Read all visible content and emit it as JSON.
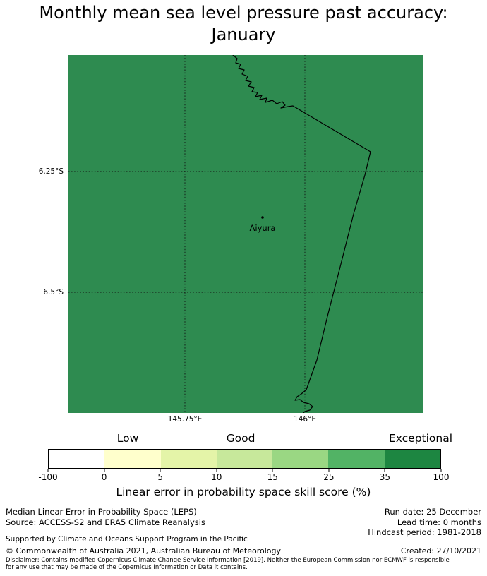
{
  "title": {
    "line1": "Monthly mean sea level pressure past accuracy:",
    "line2": "January"
  },
  "map": {
    "region_fill": "#2e8b50",
    "coastline_color": "#000000",
    "lat_labels": [
      "6.25°S",
      "6.5°S"
    ],
    "lon_labels": [
      "145.75°E",
      "146°E"
    ],
    "station": {
      "name": "Aiyura"
    }
  },
  "colorbar": {
    "quality_labels": [
      "Low",
      "Good",
      "Exceptional"
    ],
    "tick_labels": [
      "-100",
      "0",
      "5",
      "10",
      "15",
      "25",
      "35",
      "100"
    ],
    "segment_colors": [
      "#ffffff",
      "#ffffcc",
      "#e4f4a8",
      "#c7e89b",
      "#9ad783",
      "#52b365",
      "#1d8641"
    ],
    "axis_label": "Linear error in probability space skill score (%)"
  },
  "footer": {
    "metric": "Median Linear Error in Probability Space (LEPS)",
    "source": "Source: ACCESS-S2 and ERA5 Climate Reanalysis",
    "run_date": "Run date: 25 December",
    "lead_time": "Lead time: 0 months",
    "hindcast_period": "Hindcast period: 1981-2018",
    "supported_by": "Supported by Climate and Oceans Support Program in the Pacific",
    "copyright": "© Commonwealth of Australia 2021, Australian Bureau of Meteorology",
    "created": "Created: 27/10/2021",
    "disclaimer": "Disclaimer: Contains modified Copernicus Climate Change Service Information [2019]. Neither the European Commission nor ECMWF is responsible for any use that may be made of the Copernicus Information or Data it contains."
  }
}
